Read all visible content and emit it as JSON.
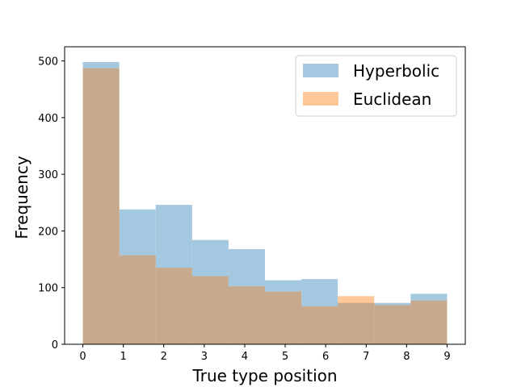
{
  "chart_data": {
    "type": "bar",
    "histogram": true,
    "title": "",
    "xlabel": "True type position",
    "ylabel": "Frequency",
    "xlim": [
      -0.45,
      9.45
    ],
    "ylim": [
      0,
      525
    ],
    "xticks": [
      0,
      1,
      2,
      3,
      4,
      5,
      6,
      7,
      8,
      9
    ],
    "yticks": [
      0,
      100,
      200,
      300,
      400,
      500
    ],
    "bin_edges": [
      0,
      0.9,
      1.8,
      2.7,
      3.6,
      4.5,
      5.4,
      6.3,
      7.2,
      8.1,
      9.0
    ],
    "series": [
      {
        "name": "Hyperbolic",
        "color": "#a3c8e0",
        "values": [
          498,
          238,
          246,
          184,
          168,
          113,
          115,
          73,
          73,
          89
        ]
      },
      {
        "name": "Euclidean",
        "color": "#ffc899",
        "values": [
          487,
          157,
          135,
          120,
          102,
          93,
          67,
          85,
          69,
          77
        ]
      }
    ],
    "overlap_color": "#c7aa8e",
    "grid": false,
    "legend_position": "top-right"
  }
}
